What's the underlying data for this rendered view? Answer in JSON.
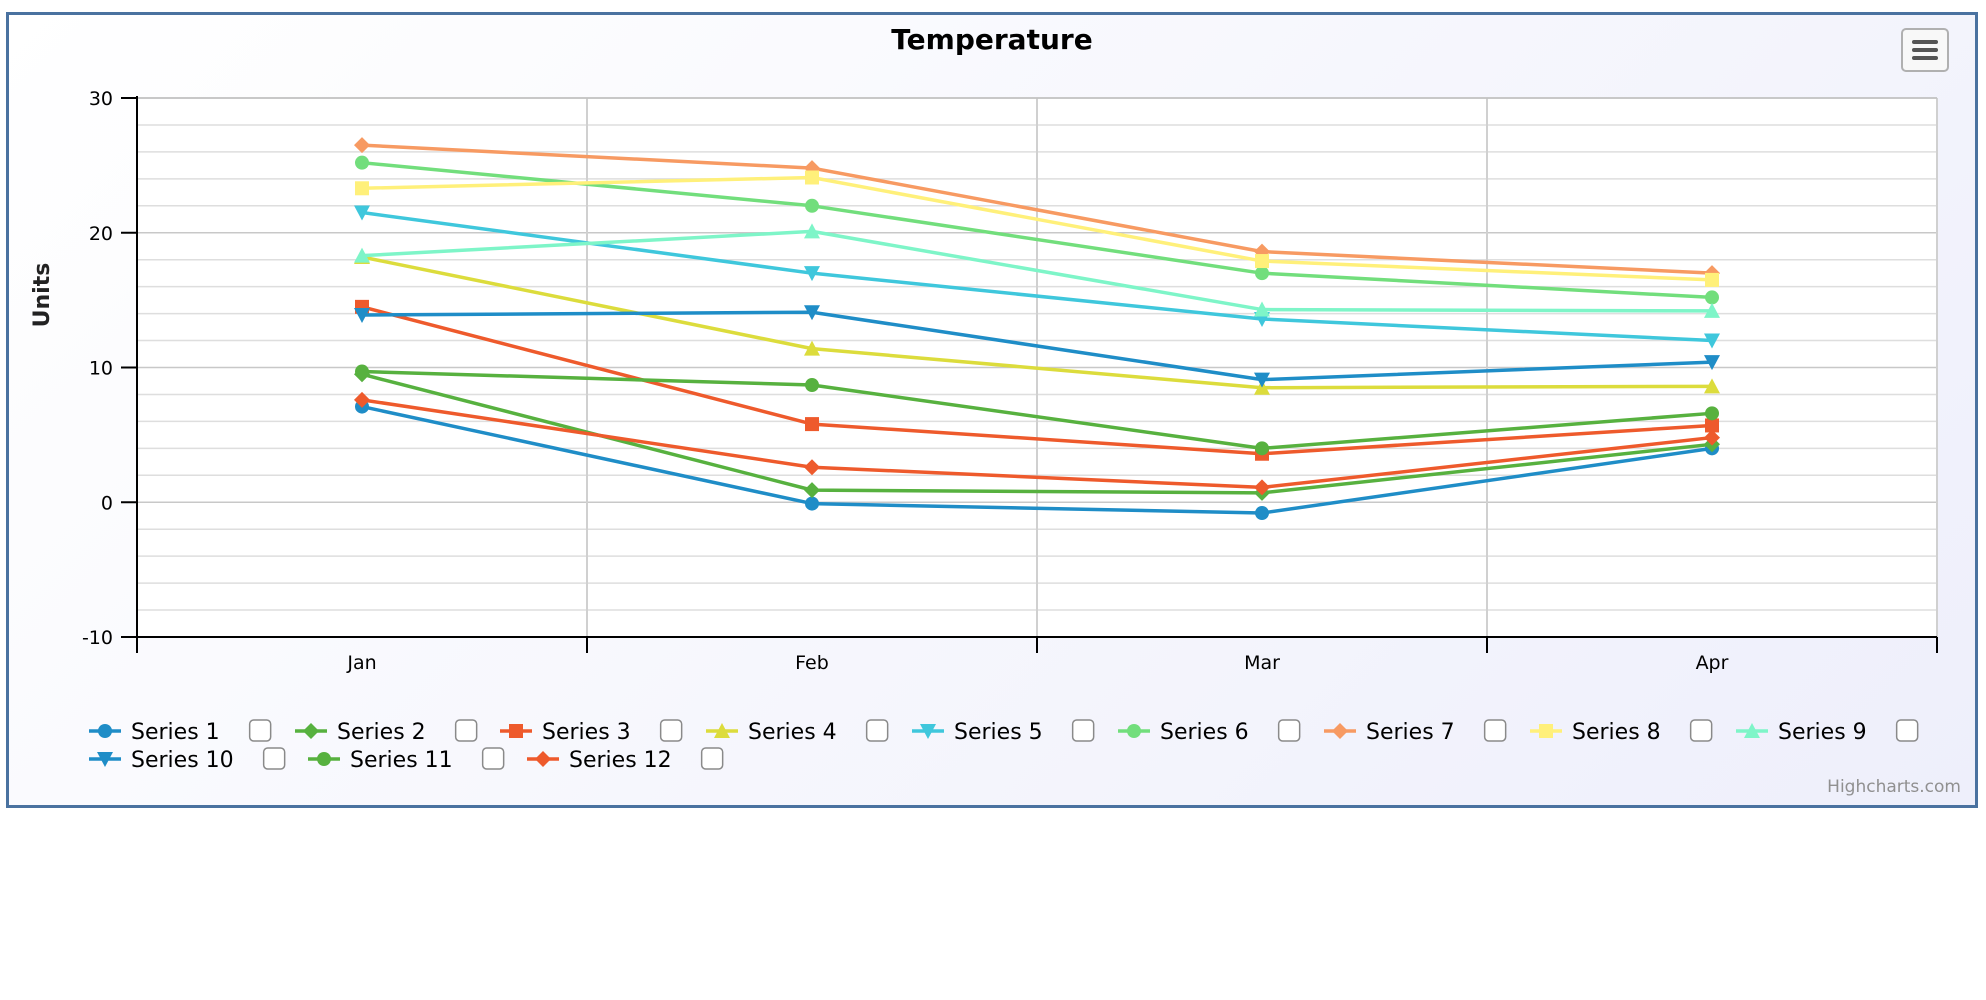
{
  "chart_data": {
    "type": "line",
    "title": "Temperature",
    "ylabel": "Units",
    "xlabel": "",
    "categories": [
      "Jan",
      "Feb",
      "Mar",
      "Apr"
    ],
    "ylim": [
      -10,
      30
    ],
    "yticks": [
      -10,
      0,
      10,
      20,
      30
    ],
    "grid": true,
    "legend_placement": "bottom",
    "series": [
      {
        "name": "Series 1",
        "color": "#1f8dc7",
        "marker": "circle",
        "values": [
          7.1,
          -0.1,
          -0.8,
          4.0
        ]
      },
      {
        "name": "Series 2",
        "color": "#57b13f",
        "marker": "diamond",
        "values": [
          9.5,
          0.9,
          0.7,
          4.3
        ]
      },
      {
        "name": "Series 3",
        "color": "#ee5a2c",
        "marker": "square",
        "values": [
          14.5,
          5.8,
          3.6,
          5.7
        ]
      },
      {
        "name": "Series 4",
        "color": "#dcdc3c",
        "marker": "triangle",
        "values": [
          18.2,
          11.4,
          8.5,
          8.6
        ]
      },
      {
        "name": "Series 5",
        "color": "#3fc7dc",
        "marker": "triangle-down",
        "values": [
          21.5,
          17.0,
          13.6,
          12.0
        ]
      },
      {
        "name": "Series 6",
        "color": "#72de7c",
        "marker": "circle",
        "values": [
          25.2,
          22.0,
          17.0,
          15.2
        ]
      },
      {
        "name": "Series 7",
        "color": "#f79a62",
        "marker": "diamond",
        "values": [
          26.5,
          24.8,
          18.6,
          17.0
        ]
      },
      {
        "name": "Series 8",
        "color": "#fff07a",
        "marker": "square",
        "values": [
          23.3,
          24.1,
          17.9,
          16.5
        ]
      },
      {
        "name": "Series 9",
        "color": "#7ef5c8",
        "marker": "triangle",
        "values": [
          18.3,
          20.1,
          14.3,
          14.2
        ]
      },
      {
        "name": "Series 10",
        "color": "#1f8dc7",
        "marker": "triangle-down",
        "values": [
          13.9,
          14.1,
          9.1,
          10.4
        ]
      },
      {
        "name": "Series 11",
        "color": "#57b13f",
        "marker": "circle",
        "values": [
          9.7,
          8.7,
          4.0,
          6.6
        ]
      },
      {
        "name": "Series 12",
        "color": "#ee5a2c",
        "marker": "diamond",
        "values": [
          7.6,
          2.6,
          1.1,
          4.8
        ]
      }
    ],
    "credits": "Highcharts.com"
  },
  "menu_icon": "hamburger-menu-icon"
}
